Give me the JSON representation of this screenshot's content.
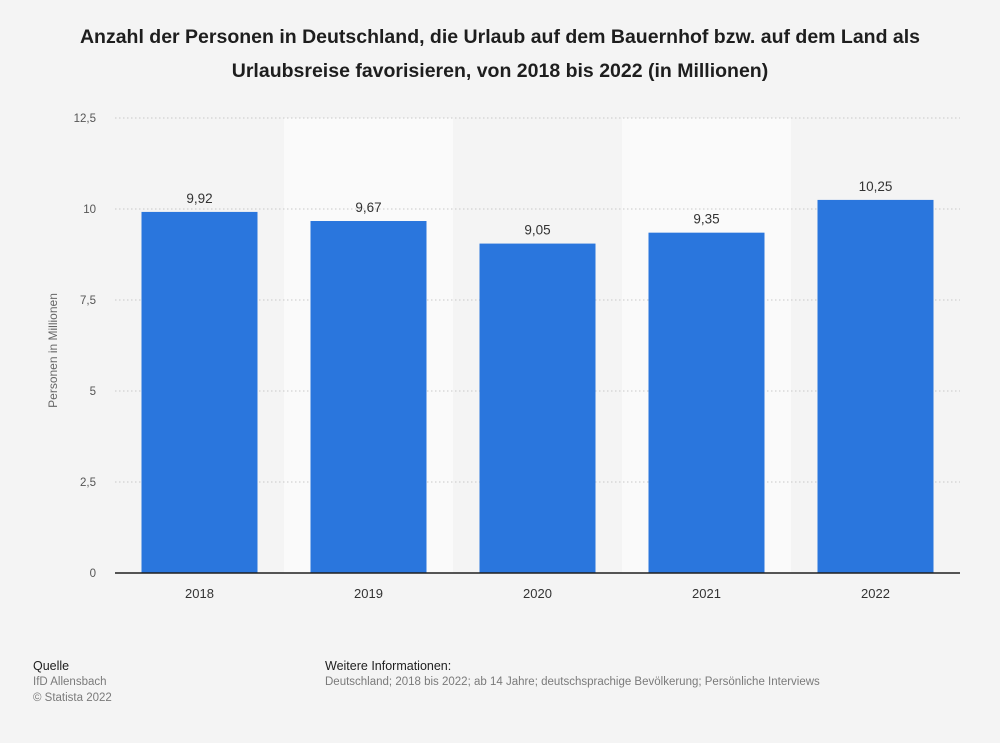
{
  "chart_data": {
    "type": "bar",
    "title": "Anzahl der Personen in Deutschland, die Urlaub auf dem Bauernhof bzw. auf dem Land als Urlaubsreise favorisieren, von 2018 bis 2022 (in Millionen)",
    "categories": [
      "2018",
      "2019",
      "2020",
      "2021",
      "2022"
    ],
    "values": [
      9.92,
      9.67,
      9.05,
      9.35,
      10.25
    ],
    "value_labels": [
      "9,92",
      "9,67",
      "9,05",
      "9,35",
      "10,25"
    ],
    "xlabel": "",
    "ylabel": "Personen in Millionen",
    "ylim": [
      0,
      12.5
    ],
    "yticks": [
      0,
      2.5,
      5,
      7.5,
      10,
      12.5
    ],
    "ytick_labels": [
      "0",
      "2,5",
      "5",
      "7,5",
      "10",
      "12,5"
    ],
    "grid": true,
    "legend": "none"
  },
  "colors": {
    "bar": "#2a76dd",
    "background": "#f4f4f4",
    "band": "#fafafa",
    "grid": "#c8c8c8",
    "axis": "#1e1e1e"
  },
  "footer": {
    "source_heading": "Quelle",
    "source_lines": [
      "IfD Allensbach",
      "© Statista 2022"
    ],
    "info_heading": "Weitere Informationen:",
    "info_text": "Deutschland; 2018 bis 2022; ab 14 Jahre; deutschsprachige Bevölkerung; Persönliche Interviews"
  }
}
